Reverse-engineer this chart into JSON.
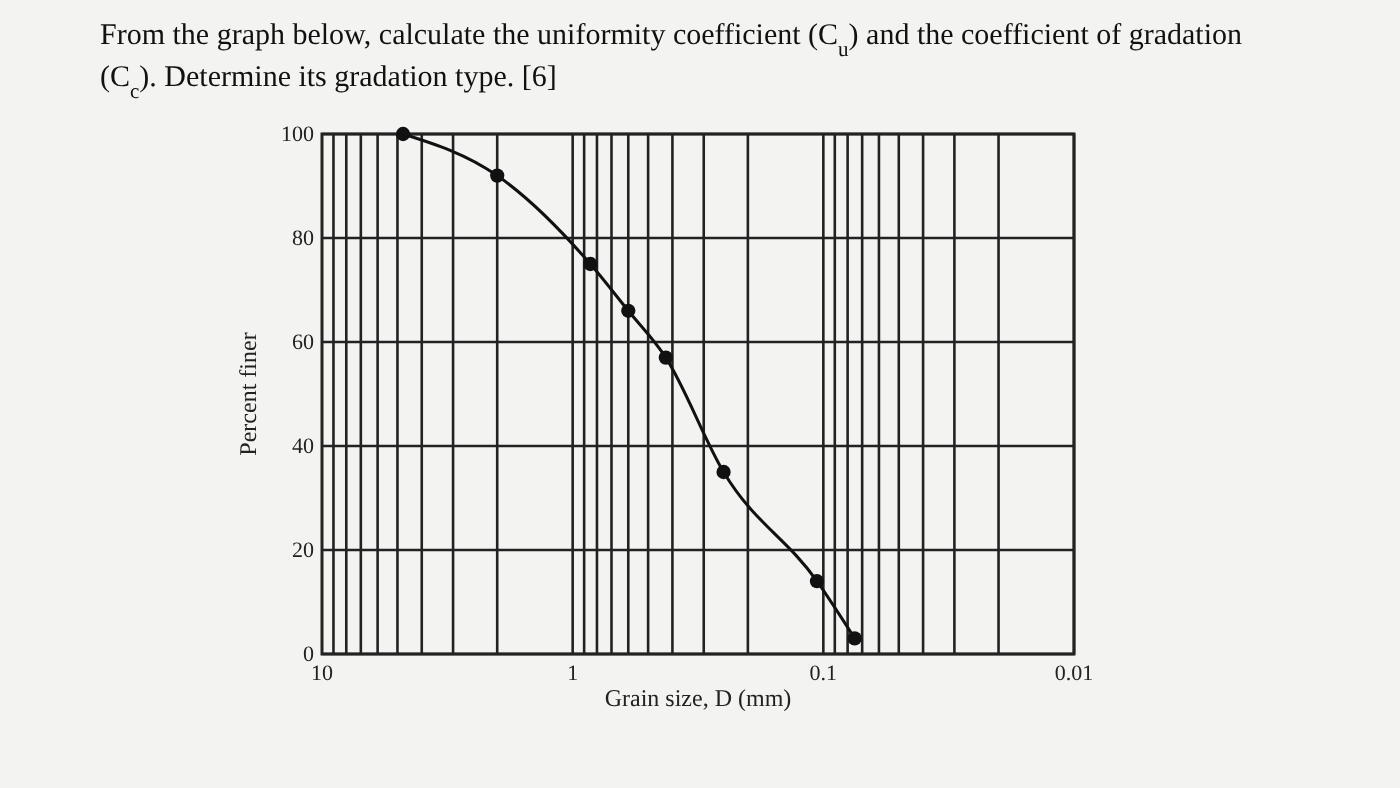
{
  "chart_data": {
    "type": "line",
    "title": "From the graph below, calculate the uniformity coefficient (C$_{u}$) and the coefficient of gradation (C$_{c}$). Determine its gradation type. [6]",
    "xlabel": "Grain size, D (mm)",
    "ylabel": "Percent finer",
    "series": [
      {
        "color": "#111111",
        "x": [
          4.75,
          2.0,
          0.85,
          0.6,
          0.425,
          0.25,
          0.106,
          0.075
        ],
        "values": [
          100,
          92,
          75,
          66,
          57,
          35,
          14,
          3
        ]
      }
    ],
    "xlim": [
      10,
      0.01
    ],
    "xticks": [
      10,
      1,
      0.1,
      0.01
    ],
    "ylim": [
      0,
      100
    ],
    "yticks": [
      0,
      20,
      40,
      60,
      80,
      100
    ],
    "log": "x",
    "grid": true,
    "marker": "circle",
    "line_style": "solid"
  }
}
